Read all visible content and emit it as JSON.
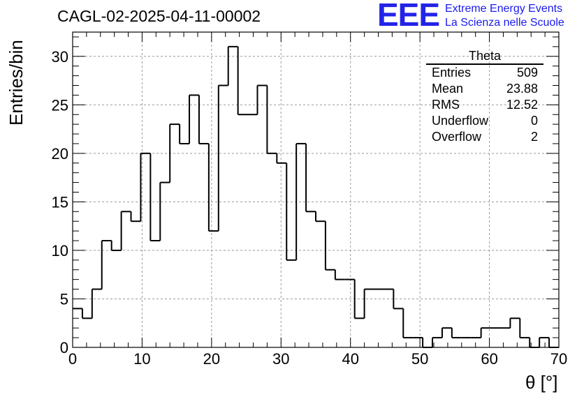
{
  "header": {
    "title": "CAGL-02-2025-04-11-00002",
    "logo_text": "EEE",
    "logo_line1": "Extreme Energy Events",
    "logo_line2": "La Scienza nelle Scuole"
  },
  "stats": {
    "title": "Theta",
    "rows": [
      {
        "label": "Entries",
        "value": "509"
      },
      {
        "label": "Mean",
        "value": "23.88"
      },
      {
        "label": "RMS",
        "value": "12.52"
      },
      {
        "label": "Underflow",
        "value": "0"
      },
      {
        "label": "Overflow",
        "value": "2"
      }
    ]
  },
  "colors": {
    "line": "#000000",
    "grid": "#9a9a9a",
    "logo": "#2323e8"
  },
  "chart_data": {
    "type": "bar",
    "style": "step-histogram",
    "xlabel": "θ [°]",
    "ylabel": "Entries/bin",
    "xlim": [
      0,
      70
    ],
    "ylim": [
      0,
      32.5
    ],
    "bin_width": 1.4,
    "grid": true,
    "x_ticks": [
      0,
      10,
      20,
      30,
      40,
      50,
      60,
      70
    ],
    "y_ticks": [
      0,
      5,
      10,
      15,
      20,
      25,
      30
    ],
    "values": [
      4,
      3,
      6,
      11,
      10,
      14,
      13,
      20,
      11,
      17,
      23,
      21,
      26,
      21,
      12,
      27,
      31,
      24,
      24,
      27,
      20,
      19,
      9,
      21,
      14,
      13,
      8,
      7,
      7,
      3,
      6,
      6,
      6,
      4,
      1,
      1,
      0,
      1,
      2,
      1,
      1,
      1,
      2,
      2,
      2,
      3,
      1,
      0,
      1,
      0
    ]
  }
}
